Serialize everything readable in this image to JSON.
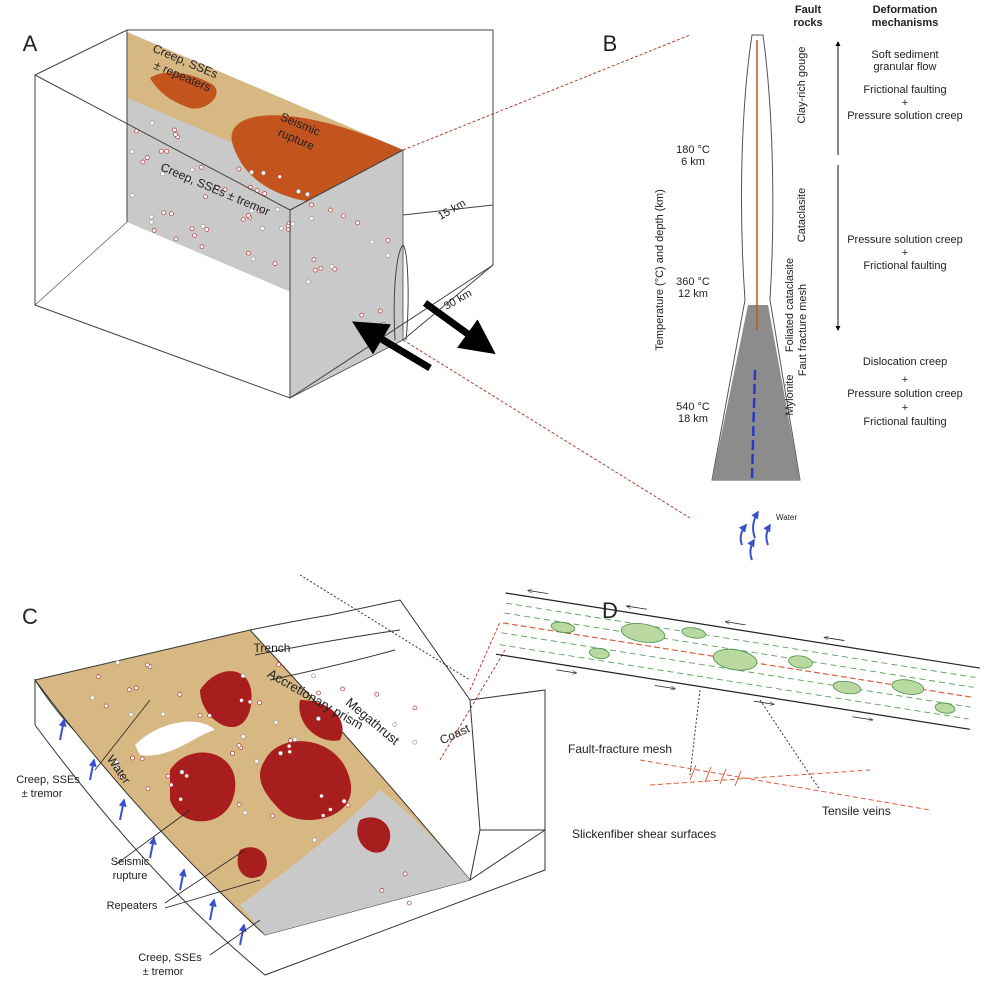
{
  "panel_a": {
    "letter": "A",
    "shallow_zone": [
      "Creep, SSEs",
      "± repeaters"
    ],
    "seismic_zone": [
      "Seismic",
      "rupture"
    ],
    "deep_zone": "Creep, SSEs ± tremor",
    "depth_15": "15 km",
    "depth_30": "30 km"
  },
  "panel_b": {
    "letter": "B",
    "fault_rocks_header": [
      "Fault",
      "rocks"
    ],
    "mechanisms_header": [
      "Deformation",
      "mechanisms"
    ],
    "axis_label": "Temperature (°C) and depth (km)",
    "depths": [
      [
        "180 °C",
        "6 km"
      ],
      [
        "360 °C",
        "12 km"
      ],
      [
        "540 °C",
        "18 km"
      ]
    ],
    "rocks": [
      "Clay-rich gouge",
      "Cataclasite",
      "Foliated cataclasite",
      "Faut fracture mesh",
      "Mylonite"
    ],
    "mechanisms": [
      [
        "Soft sediment",
        "granular flow",
        "Frictional faulting",
        "+",
        "Pressure solution creep"
      ],
      [
        "Pressure solution creep",
        "+",
        "Frictional faulting"
      ],
      [
        "Dislocation creep",
        "+",
        "Pressure solution creep",
        "+",
        "Frictional faulting"
      ]
    ],
    "water": "Water"
  },
  "panel_c": {
    "letter": "C",
    "trench": "Trench",
    "prism": "Accretionary prism",
    "megathrust": "Megathrust",
    "coast": "Coast",
    "creep_upper": [
      "Creep, SSEs",
      "± tremor"
    ],
    "water": "Water",
    "seismic_rupture": [
      "Seismic",
      "rupture"
    ],
    "repeaters": "Repeaters",
    "creep_lower": [
      "Creep, SSEs",
      "± tremor"
    ]
  },
  "panel_d": {
    "letter": "D",
    "mesh": "Fault-fracture mesh",
    "veins": "Tensile veins",
    "slickenfiber": "Slickenfiber shear surfaces"
  }
}
